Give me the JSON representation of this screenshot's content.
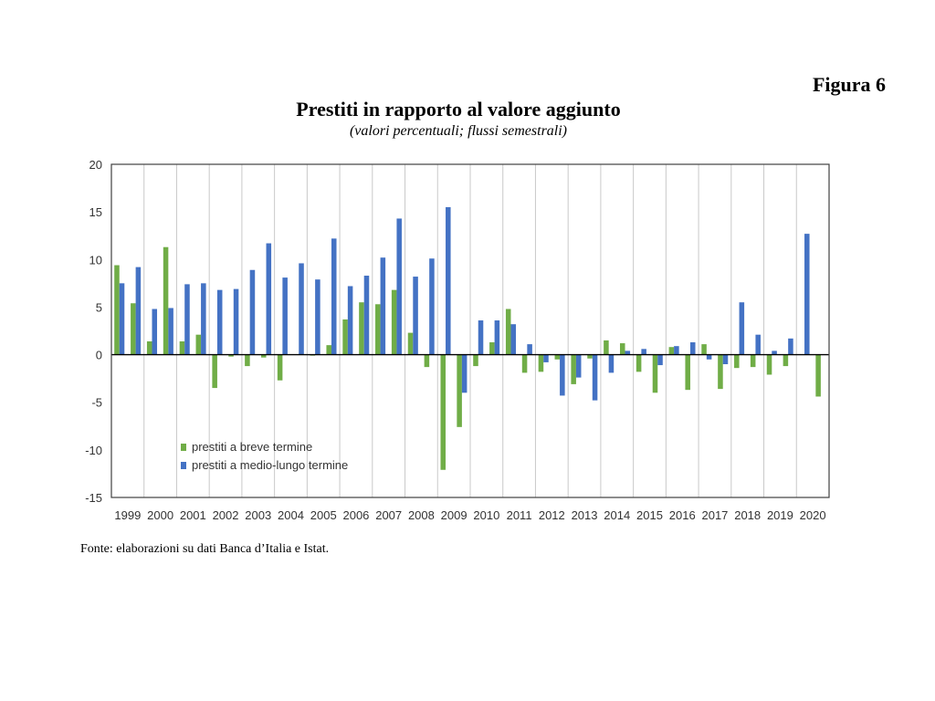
{
  "figure_label": "Figura 6",
  "title": "Prestiti in rapporto al valore aggiunto",
  "subtitle": "(valori percentuali; flussi semestrali)",
  "source": "Fonte: elaborazioni su dati Banca d’Italia e Istat.",
  "colors": {
    "series_short": "#70ad47",
    "series_long": "#4472c4",
    "grid": "#c9c9c9",
    "axis": "#404040"
  },
  "chart_data": {
    "type": "bar",
    "ylim": [
      -15,
      20
    ],
    "yticks": [
      20,
      15,
      10,
      5,
      0,
      -5,
      -10,
      -15
    ],
    "grid": true,
    "legend_position": "bottom-left",
    "years": [
      "1999",
      "2000",
      "2001",
      "2002",
      "2003",
      "2004",
      "2005",
      "2006",
      "2007",
      "2008",
      "2009",
      "2010",
      "2011",
      "2012",
      "2013",
      "2014",
      "2015",
      "2016",
      "2017",
      "2018",
      "2019",
      "2020"
    ],
    "series": [
      {
        "name": "prestiti a breve termine",
        "color": "#70ad47",
        "values": [
          9.4,
          5.4,
          1.4,
          11.3,
          1.4,
          2.1,
          -3.5,
          -0.2,
          -1.2,
          -0.3,
          -2.7,
          0.0,
          -0.1,
          1.0,
          3.7,
          5.5,
          5.3,
          6.8,
          2.3,
          -1.3,
          -12.1,
          -7.6,
          -1.2,
          1.3,
          4.8,
          -1.9,
          -1.8,
          -0.5,
          -3.1,
          -0.4,
          1.5,
          1.2,
          -1.8,
          -4.0,
          0.8,
          -3.7,
          1.1,
          -3.6,
          -1.4,
          -1.3,
          -2.1,
          -1.2,
          0.0,
          -4.4
        ]
      },
      {
        "name": "prestiti a medio-lungo termine",
        "color": "#4472c4",
        "values": [
          7.5,
          9.2,
          4.8,
          4.9,
          7.4,
          7.5,
          6.8,
          6.9,
          8.9,
          11.7,
          8.1,
          9.6,
          7.9,
          12.2,
          7.2,
          8.3,
          10.2,
          14.3,
          8.2,
          10.1,
          15.5,
          -4.0,
          3.6,
          3.6,
          3.2,
          1.1,
          -0.8,
          -4.3,
          -2.4,
          -4.8,
          -1.9,
          0.4,
          0.6,
          -1.1,
          0.9,
          1.3,
          -0.5,
          -1.0,
          5.5,
          2.1,
          0.4,
          1.7,
          12.7,
          0.0
        ]
      }
    ]
  }
}
